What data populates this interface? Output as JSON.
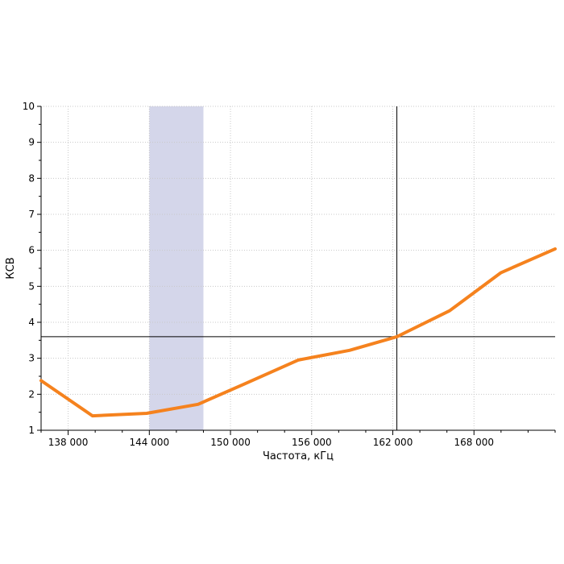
{
  "chart_data": {
    "type": "line",
    "title": "",
    "xlabel": "Частота, кГц",
    "ylabel": "КСВ",
    "xlim": [
      136000,
      174000
    ],
    "ylim": [
      1,
      10
    ],
    "x_ticks": [
      138000,
      144000,
      150000,
      156000,
      162000,
      168000
    ],
    "x_tick_labels": [
      "138 000",
      "144 000",
      "150 000",
      "156 000",
      "162 000",
      "168 000"
    ],
    "y_ticks": [
      1,
      2,
      3,
      4,
      5,
      6,
      7,
      8,
      9,
      10
    ],
    "y_tick_labels": [
      "1",
      "2",
      "3",
      "4",
      "5",
      "6",
      "7",
      "8",
      "9",
      "10"
    ],
    "grid": true,
    "band": {
      "x_from": 144000,
      "x_to": 148000,
      "color": "#d4d6ea"
    },
    "crosshair": {
      "x": 162300,
      "y": 3.6
    },
    "series": [
      {
        "color": "#f5821e",
        "x": [
          136000,
          139800,
          143800,
          147600,
          151000,
          155000,
          158800,
          162300,
          166200,
          170000,
          174000
        ],
        "y": [
          2.38,
          1.4,
          1.47,
          1.72,
          2.28,
          2.95,
          3.22,
          3.6,
          4.32,
          5.38,
          6.04
        ]
      }
    ]
  }
}
